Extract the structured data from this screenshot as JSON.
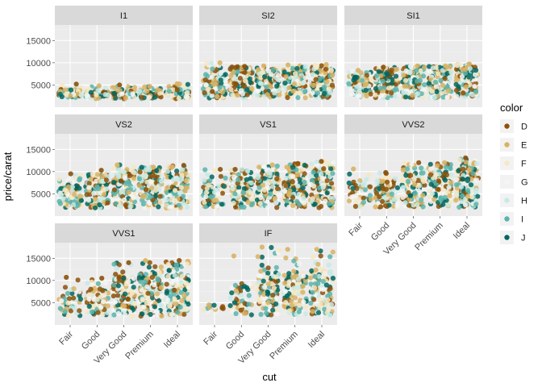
{
  "chart_data": {
    "type": "scatter",
    "subtype": "jittered strip plot, faceted",
    "xlabel": "cut",
    "ylabel": "price/carat",
    "categories": [
      "Fair",
      "Good",
      "Very Good",
      "Premium",
      "Ideal"
    ],
    "yticks": [
      5000,
      10000,
      15000
    ],
    "ylim": [
      0,
      18500
    ],
    "legend": {
      "title": "color",
      "placement": "right",
      "items": [
        {
          "label": "D",
          "color": "#8C510A"
        },
        {
          "label": "E",
          "color": "#D8B365"
        },
        {
          "label": "F",
          "color": "#F6E8C3"
        },
        {
          "label": "G",
          "color": "#F5F5F5"
        },
        {
          "label": "H",
          "color": "#C7EAE5"
        },
        {
          "label": "I",
          "color": "#5AB4AC"
        },
        {
          "label": "J",
          "color": "#01665E"
        }
      ]
    },
    "panel_background": "#EBEBEB",
    "strip_background": "#D9D9D9",
    "facets": [
      {
        "label": "I1",
        "min": [
          2000,
          1900,
          1900,
          1900,
          1900
        ],
        "max": [
          5200,
          4800,
          5000,
          4700,
          5300
        ],
        "bulk": [
          4000,
          3900,
          4000,
          3800,
          4100
        ],
        "density": [
          0.6,
          0.6,
          0.6,
          0.6,
          0.6
        ]
      },
      {
        "label": "SI2",
        "min": [
          2000,
          2100,
          2100,
          2100,
          2100
        ],
        "max": [
          10000,
          9200,
          9300,
          9500,
          9600
        ],
        "bulk": [
          7500,
          8300,
          8400,
          8600,
          8700
        ],
        "density": [
          0.8,
          1.0,
          1.0,
          1.0,
          1.0
        ]
      },
      {
        "label": "SI1",
        "min": [
          2100,
          2100,
          2100,
          2100,
          2100
        ],
        "max": [
          8300,
          9000,
          9300,
          9300,
          9700
        ],
        "bulk": [
          7200,
          8500,
          8800,
          8800,
          9000
        ],
        "density": [
          0.8,
          1.0,
          1.0,
          1.0,
          1.0
        ]
      },
      {
        "label": "VS2",
        "min": [
          1900,
          1800,
          1800,
          1800,
          1800
        ],
        "max": [
          9500,
          10300,
          11500,
          11000,
          11400
        ],
        "bulk": [
          7000,
          8500,
          10000,
          10000,
          10200
        ],
        "density": [
          0.7,
          1.0,
          1.0,
          1.0,
          1.0
        ]
      },
      {
        "label": "VS1",
        "min": [
          1900,
          1800,
          1800,
          1800,
          1800
        ],
        "max": [
          10500,
          10500,
          11500,
          11800,
          12300
        ],
        "bulk": [
          7000,
          8800,
          10500,
          10500,
          11000
        ],
        "density": [
          0.6,
          1.0,
          1.0,
          1.0,
          1.0
        ]
      },
      {
        "label": "VVS2",
        "min": [
          2000,
          1900,
          1900,
          1900,
          1900
        ],
        "max": [
          10600,
          9800,
          12000,
          12000,
          13100
        ],
        "bulk": [
          7500,
          8000,
          10000,
          10000,
          11000
        ],
        "density": [
          0.4,
          0.7,
          1.0,
          1.0,
          1.0
        ]
      },
      {
        "label": "VVS1",
        "min": [
          2000,
          1900,
          1900,
          1900,
          1900
        ],
        "max": [
          10700,
          10500,
          14000,
          14500,
          14500
        ],
        "bulk": [
          7500,
          8500,
          11000,
          11500,
          11500
        ],
        "density": [
          0.3,
          0.55,
          1.0,
          1.0,
          1.0
        ]
      },
      {
        "label": "IF",
        "min": [
          3000,
          2200,
          2100,
          2100,
          2100
        ],
        "max": [
          4500,
          15500,
          17500,
          17000,
          17000
        ],
        "bulk": [
          4300,
          9000,
          12000,
          12000,
          12500
        ],
        "density": [
          0.12,
          0.35,
          0.8,
          0.7,
          0.8
        ]
      }
    ]
  }
}
